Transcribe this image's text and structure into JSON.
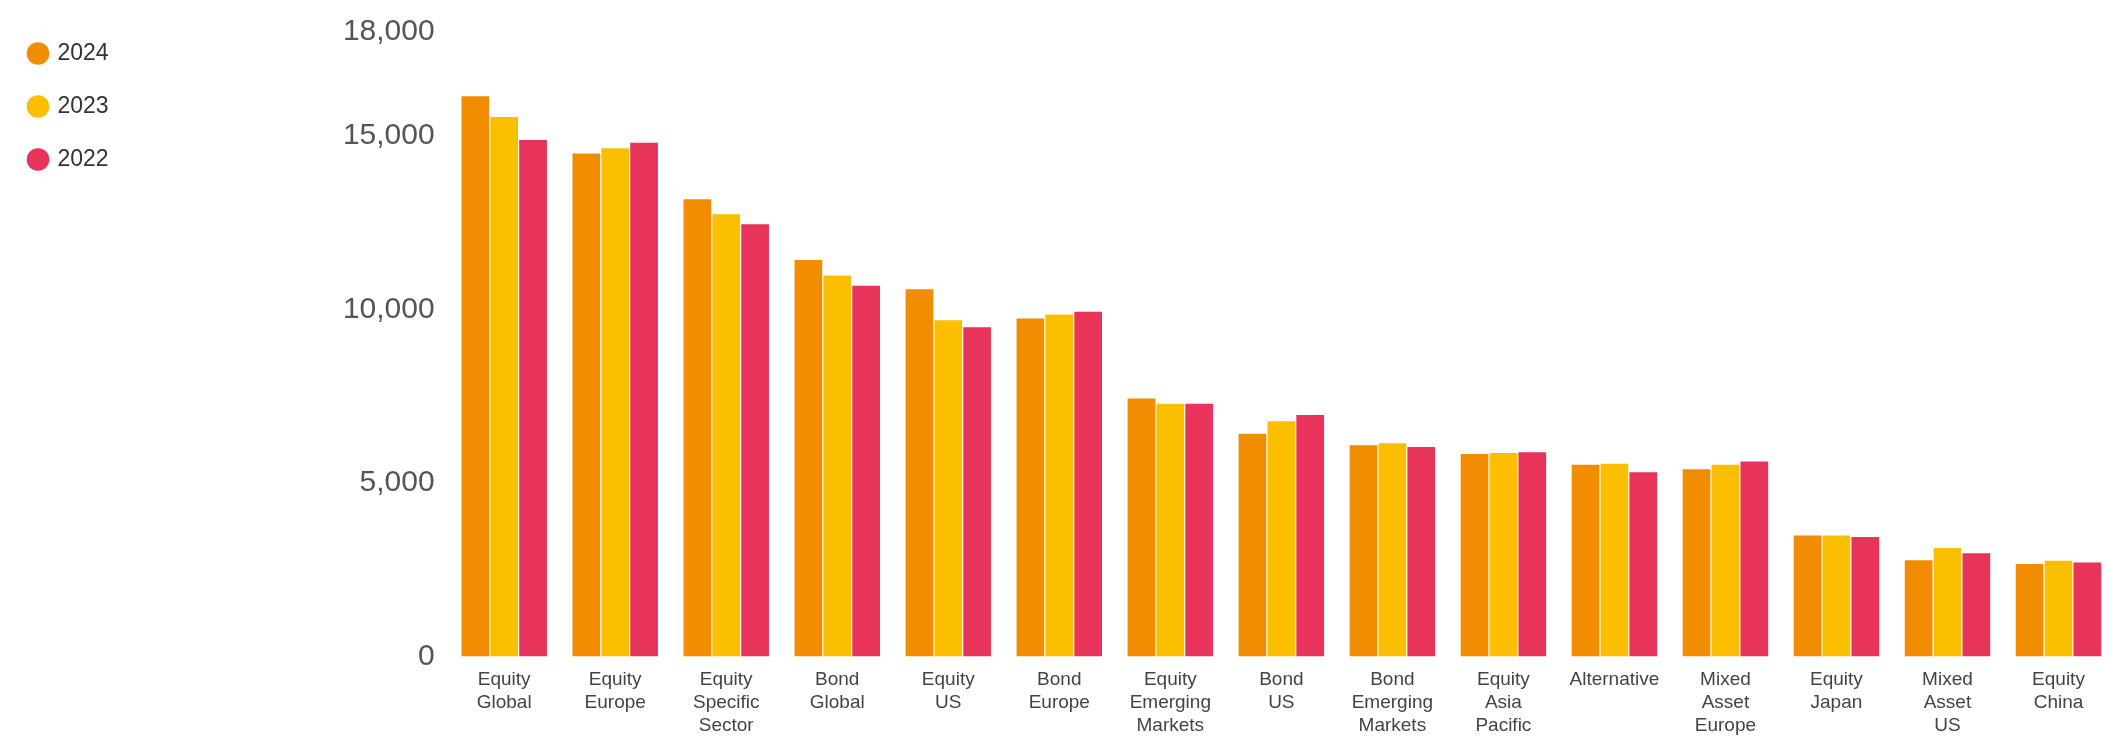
{
  "chart_data": {
    "type": "bar",
    "categories": [
      "Equity Global",
      "Equity Europe",
      "Equity Specific Sector",
      "Bond Global",
      "Equity US",
      "Bond Europe",
      "Equity Emerging Markets",
      "Bond US",
      "Bond Emerging Markets",
      "Equity Asia Pacific",
      "Alternative",
      "Mixed Asset Europe",
      "Equity Japan",
      "Mixed Asset US",
      "Equity China"
    ],
    "series": [
      {
        "name": "2024",
        "color": "#f28c00",
        "values": [
          16150,
          14500,
          13180,
          11430,
          10590,
          9740,
          7440,
          6420,
          6090,
          5840,
          5530,
          5400,
          3490,
          2780,
          2670
        ]
      },
      {
        "name": "2023",
        "color": "#fbbf00",
        "values": [
          15550,
          14650,
          12750,
          10980,
          9690,
          9860,
          7290,
          6780,
          6150,
          5870,
          5560,
          5530,
          3490,
          3130,
          2760
        ]
      },
      {
        "name": "2022",
        "color": "#e8335a",
        "values": [
          14890,
          14810,
          12460,
          10690,
          9490,
          9940,
          7290,
          6960,
          6040,
          5890,
          5310,
          5620,
          3450,
          2980,
          2710
        ]
      }
    ],
    "ylim": [
      0,
      18000
    ],
    "yticks": [
      0,
      {
        "value": 5000,
        "label": "5,000"
      },
      {
        "value": 10000,
        "label": "10,000"
      },
      {
        "value": 15000,
        "label": "15,000"
      },
      {
        "value": 18000,
        "label": "18,000"
      }
    ],
    "grid": false,
    "legend": "top left"
  }
}
